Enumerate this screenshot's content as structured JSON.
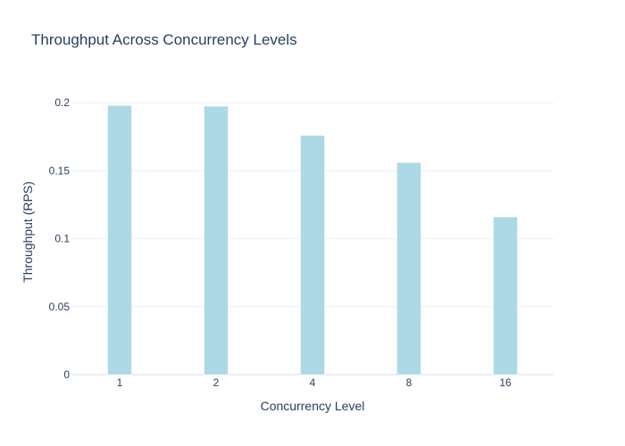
{
  "chart_data": {
    "type": "bar",
    "title": "Throughput Across Concurrency Levels",
    "xlabel": "Concurrency Level",
    "ylabel": "Throughput (RPS)",
    "categories": [
      "1",
      "2",
      "4",
      "8",
      "16"
    ],
    "values": [
      0.198,
      0.1975,
      0.176,
      0.156,
      0.116
    ],
    "ylim": [
      0,
      0.21
    ],
    "yticks": [
      0,
      0.05,
      0.1,
      0.15,
      0.2
    ],
    "ytick_labels": [
      "0",
      "0.05",
      "0.1",
      "0.15",
      "0.2"
    ],
    "bar_color": "#add8e6",
    "grid": true,
    "legend": false
  }
}
